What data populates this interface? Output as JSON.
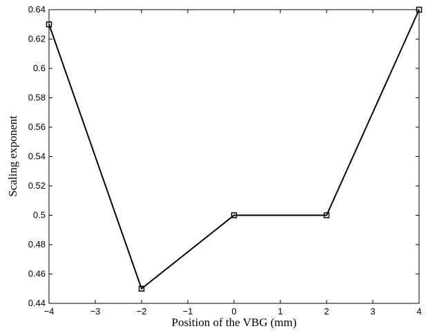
{
  "chart_data": {
    "type": "line",
    "xlabel": "Position of the VBG (mm)",
    "ylabel": "Scaling exponent",
    "xlim": [
      -4,
      4
    ],
    "ylim": [
      0.44,
      0.64
    ],
    "x_ticks": [
      -4,
      -3,
      -2,
      -1,
      0,
      1,
      2,
      3,
      4
    ],
    "x_tick_labels": [
      "−4",
      "−3",
      "−2",
      "−1",
      "0",
      "1",
      "2",
      "3",
      "4"
    ],
    "y_ticks": [
      0.44,
      0.46,
      0.48,
      0.5,
      0.52,
      0.54,
      0.56,
      0.58,
      0.6,
      0.62,
      0.64
    ],
    "y_tick_labels": [
      "0.44",
      "0.46",
      "0.48",
      "0.5",
      "0.52",
      "0.54",
      "0.56",
      "0.58",
      "0.6",
      "0.62",
      "0.64"
    ],
    "grid": false,
    "marker": "square",
    "series": [
      {
        "x": [
          -4,
          -2,
          0,
          2,
          4
        ],
        "y": [
          0.63,
          0.45,
          0.5,
          0.5,
          0.64
        ],
        "color": "#000000"
      }
    ]
  }
}
